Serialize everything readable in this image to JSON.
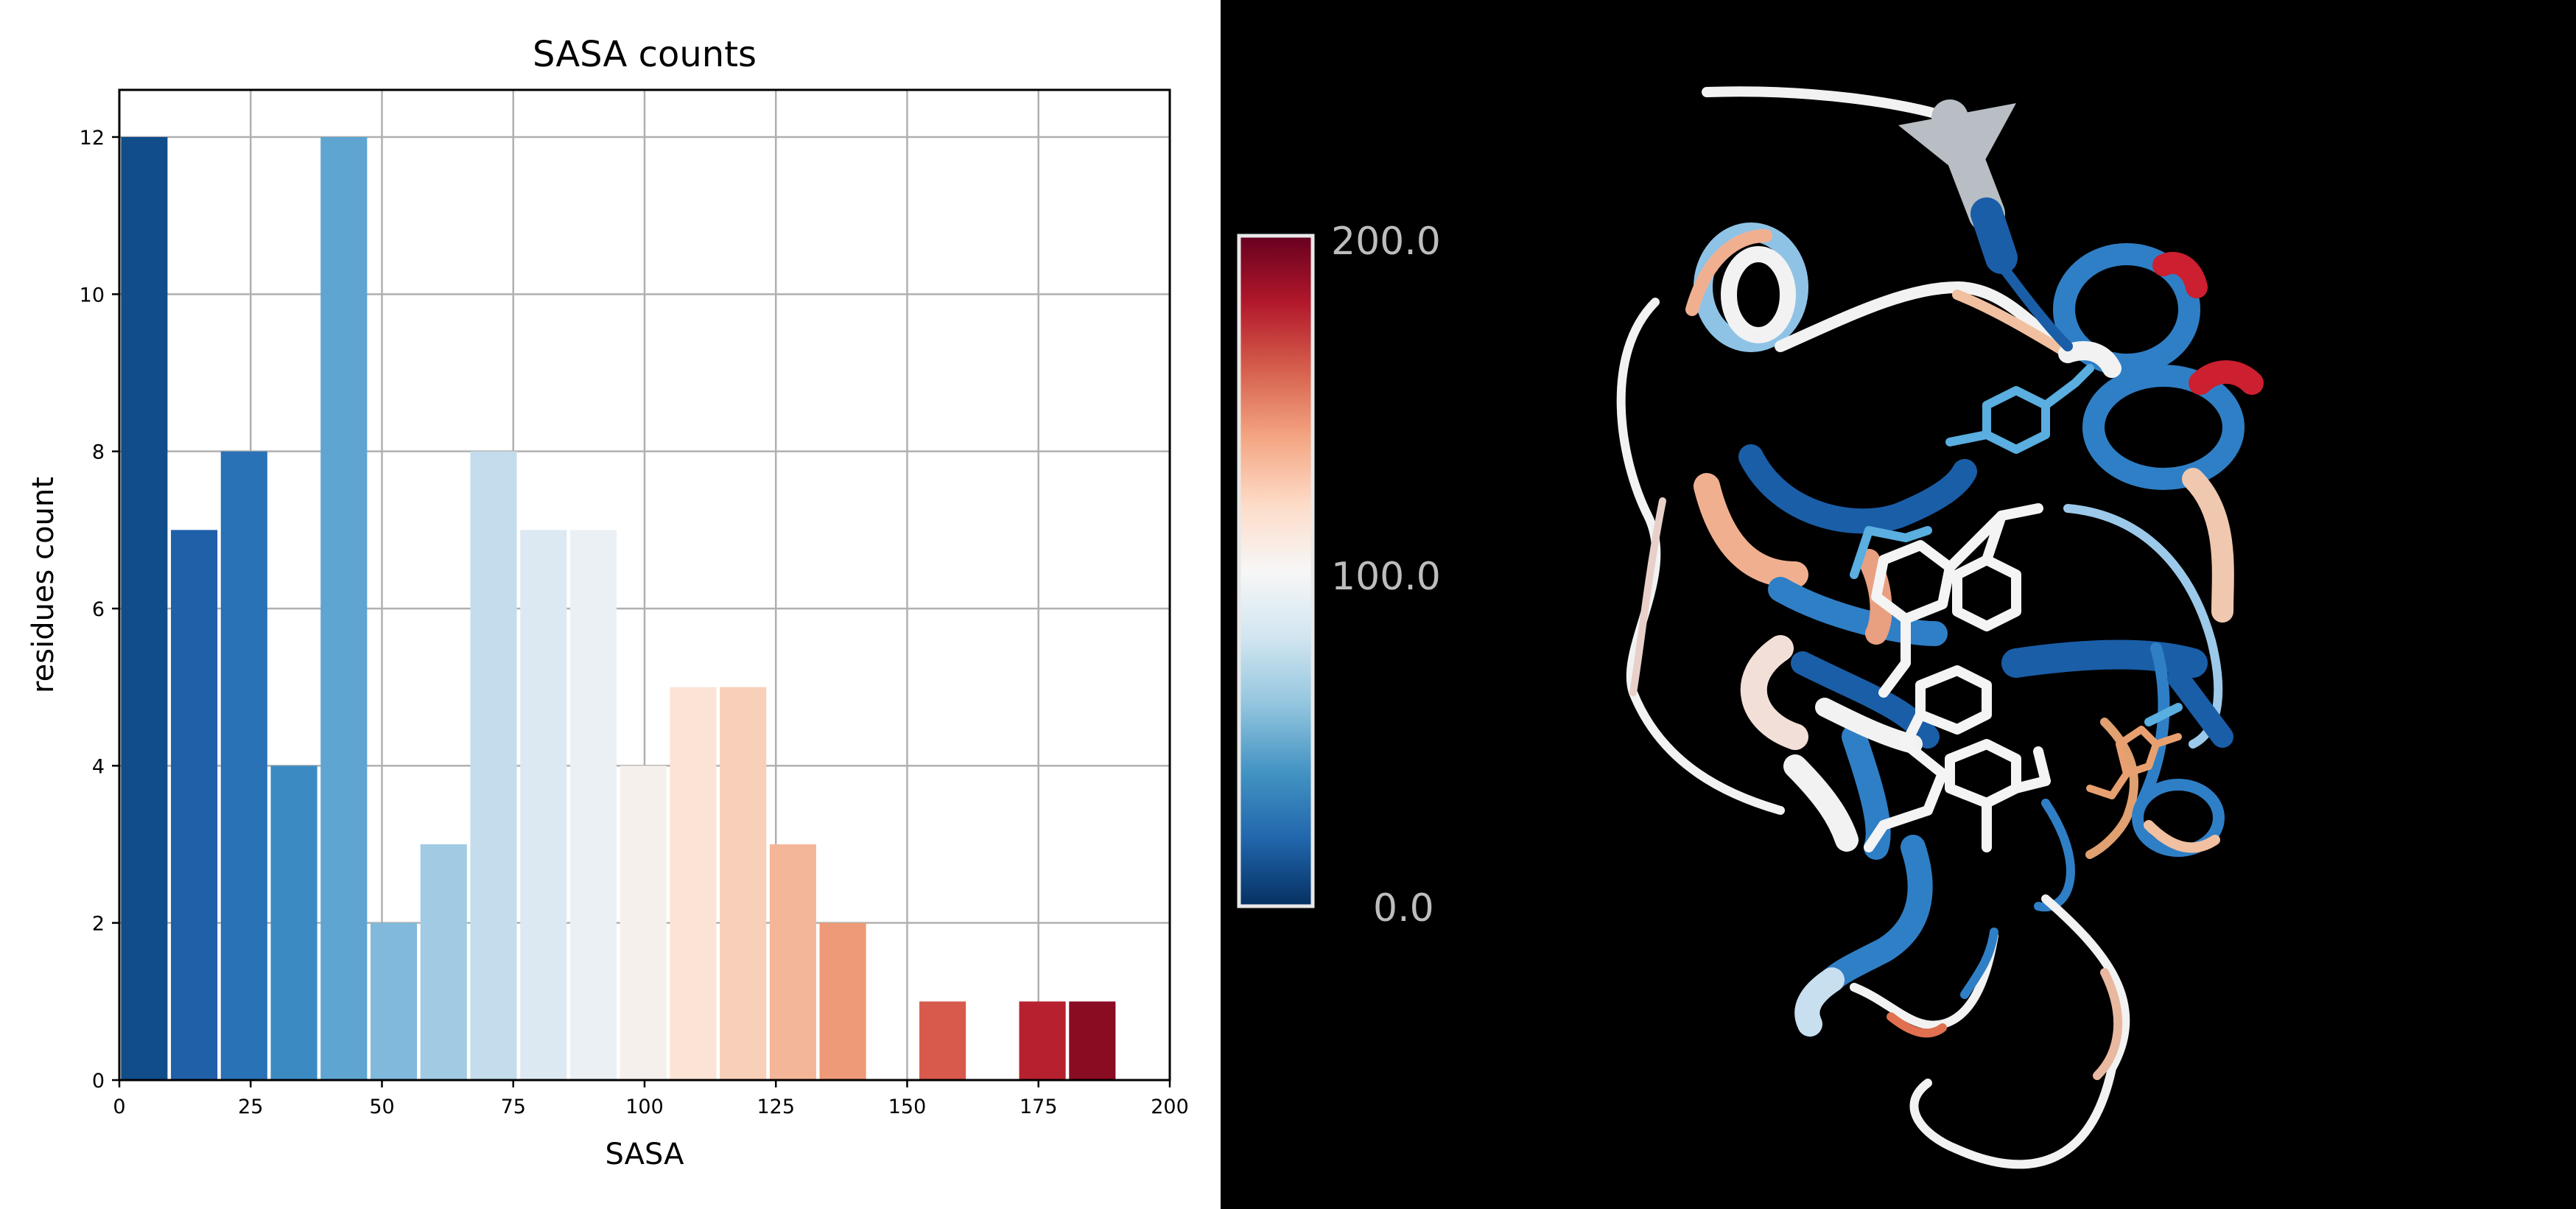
{
  "chart_data": {
    "type": "bar",
    "title": "SASA counts",
    "xlabel": "SASA",
    "ylabel": "residues count",
    "xlim": [
      0,
      200
    ],
    "ylim": [
      0,
      12.6
    ],
    "grid": true,
    "x_ticks": [
      "0",
      "25",
      "50",
      "75",
      "100",
      "125",
      "150",
      "175",
      "200"
    ],
    "y_ticks": [
      "0",
      "2",
      "4",
      "6",
      "8",
      "10",
      "12"
    ],
    "bin_width": 9.5,
    "bins": [
      {
        "x": 0.0,
        "count": 12,
        "color": "#104d8a"
      },
      {
        "x": 9.5,
        "count": 7,
        "color": "#1f60a8"
      },
      {
        "x": 19.0,
        "count": 8,
        "color": "#2a72b6"
      },
      {
        "x": 28.5,
        "count": 4,
        "color": "#3b8bc2"
      },
      {
        "x": 38.0,
        "count": 12,
        "color": "#5ea5d1"
      },
      {
        "x": 47.5,
        "count": 2,
        "color": "#80b9db"
      },
      {
        "x": 57.0,
        "count": 3,
        "color": "#a1cbe3"
      },
      {
        "x": 66.5,
        "count": 8,
        "color": "#c3ddec"
      },
      {
        "x": 76.0,
        "count": 7,
        "color": "#dce9f2"
      },
      {
        "x": 85.5,
        "count": 7,
        "color": "#eaf0f4"
      },
      {
        "x": 95.0,
        "count": 4,
        "color": "#f6f0ec"
      },
      {
        "x": 104.5,
        "count": 5,
        "color": "#fbe3d6"
      },
      {
        "x": 114.0,
        "count": 5,
        "color": "#f8cfb9"
      },
      {
        "x": 123.5,
        "count": 3,
        "color": "#f4b698"
      },
      {
        "x": 133.0,
        "count": 2,
        "color": "#ee9a78"
      },
      {
        "x": 152.0,
        "count": 1,
        "color": "#d75a4c"
      },
      {
        "x": 171.0,
        "count": 1,
        "color": "#b6202f"
      },
      {
        "x": 180.5,
        "count": 1,
        "color": "#8a0c22"
      }
    ]
  },
  "colorbar": {
    "labels": [
      "200.0",
      "100.0",
      "0.0"
    ],
    "colors": [
      "#67001f",
      "#b2182b",
      "#d6604d",
      "#f4a582",
      "#fddbc7",
      "#f7f7f7",
      "#d1e5f0",
      "#92c5de",
      "#4393c3",
      "#2166ac",
      "#053061"
    ]
  },
  "structure": {
    "background": "#000000",
    "ribbon_colors": [
      "#f2f2f2",
      "#2f7fc6",
      "#1a5ea8",
      "#8fc3e6",
      "#f0b090",
      "#cc1f2f",
      "#f7f7f7"
    ]
  }
}
